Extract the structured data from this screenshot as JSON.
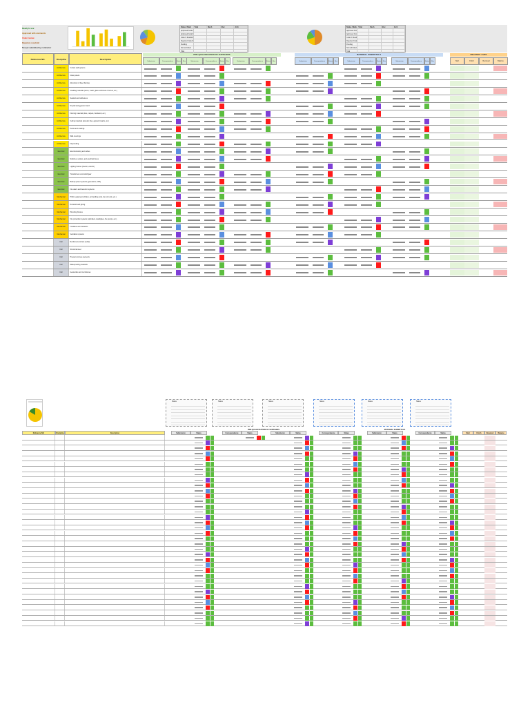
{
  "sheet1": {
    "legend_lines": [
      "Ready to use",
      "Approved with comments",
      "Under review",
      "Rejected, resubmit",
      "Not yet submitted by contractor"
    ],
    "legend_colors": [
      "#1a7a1a",
      "#a8680d",
      "#ff2200",
      "#a05010",
      "#333333"
    ],
    "summary_left": {
      "headers": [
        "Status / Mark",
        "Total",
        "Mech",
        "Elec",
        "Arch"
      ],
      "rows": [
        [
          "Approved Code A",
          "",
          "",
          "",
          ""
        ],
        [
          "Approved Code B",
          "",
          "",
          "",
          ""
        ],
        [
          "Code C Resubmit",
          "",
          "",
          "",
          ""
        ],
        [
          "Rejected Code D",
          "",
          "",
          "",
          ""
        ],
        [
          "Pending",
          "",
          "",
          "",
          ""
        ],
        [
          "Not submitted",
          "",
          "",
          "",
          ""
        ],
        [
          "Total",
          "",
          "",
          "",
          ""
        ]
      ]
    },
    "summary_right": {
      "headers": [
        "Status / Mark",
        "Total",
        "Mech",
        "Elec",
        "Arch"
      ],
      "rows": [
        [
          "Approved Code A",
          "",
          "",
          "",
          ""
        ],
        [
          "Approved Code B",
          "",
          "",
          "",
          ""
        ],
        [
          "Code C Resubmit",
          "",
          "",
          "",
          ""
        ],
        [
          "Rejected Code D",
          "",
          "",
          "",
          ""
        ],
        [
          "Pending",
          "",
          "",
          "",
          ""
        ],
        [
          "Not submitted",
          "",
          "",
          "",
          ""
        ],
        [
          "Total",
          "",
          "",
          "",
          ""
        ]
      ]
    },
    "band_prequal": "PRE-QUALIFICATION OF SUPPLIERS",
    "band_material": "MATERIAL SUBMITTALS",
    "band_right": "DELIVERY / SITE",
    "col_reference": "Reference NO.",
    "col_discipline": "Discipline",
    "col_description": "Description",
    "sub_headers": [
      "Submission",
      "Correspondence",
      "Status",
      "Rev"
    ],
    "rows": [
      {
        "ref": "",
        "disc": "Architecture",
        "desc": "Curtain wall systems"
      },
      {
        "ref": "",
        "disc": "Architecture",
        "desc": "Glass panels"
      },
      {
        "ref": "",
        "disc": "Architecture",
        "desc": "Aluminium & Steel framing"
      },
      {
        "ref": "",
        "disc": "Architecture",
        "desc": "Cladding materials (stone, metal, glass reinforced concrete, etc.)"
      },
      {
        "ref": "",
        "disc": "Architecture",
        "desc": "Sealants and adhesives"
      },
      {
        "ref": "",
        "disc": "Architecture",
        "desc": "Drywall and gypsum board"
      },
      {
        "ref": "",
        "disc": "Architecture",
        "desc": "Flooring materials (tiles, carpets, hardwood, etc.)"
      },
      {
        "ref": "",
        "disc": "Architecture",
        "desc": "Ceiling materials (acoustic tiles, gypsum boards, etc.)"
      },
      {
        "ref": "",
        "disc": "Architecture",
        "desc": "Paints and coatings"
      },
      {
        "ref": "",
        "disc": "Architecture",
        "desc": "Wall coverings"
      },
      {
        "ref": "",
        "disc": "Architecture",
        "desc": "Fireproofing"
      },
      {
        "ref": "",
        "disc": "Electrical",
        "desc": "Electrical wiring and cables"
      },
      {
        "ref": "",
        "disc": "Electrical",
        "desc": "Switches, sockets, and electrical boxes"
      },
      {
        "ref": "",
        "disc": "Electrical",
        "desc": "Lighting fixtures (interior, exterior)"
      },
      {
        "ref": "",
        "disc": "Electrical",
        "desc": "Transformers and switchgear"
      },
      {
        "ref": "",
        "disc": "Electrical",
        "desc": "Backup power systems (generators, UPS)"
      },
      {
        "ref": "",
        "disc": "Electrical",
        "desc": "Fire alarm and detection systems"
      },
      {
        "ref": "",
        "disc": "Mechanical",
        "desc": "HVAC equipment (chillers, air handling units, fan coil units, etc.)"
      },
      {
        "ref": "",
        "disc": "Mechanical",
        "desc": "Ductwork and piping"
      },
      {
        "ref": "",
        "disc": "Mechanical",
        "desc": "Plumbing fixtures"
      },
      {
        "ref": "",
        "disc": "Mechanical",
        "desc": "Fire protection systems (sprinklers, standpipes, fire pumps, etc.)"
      },
      {
        "ref": "",
        "disc": "Mechanical",
        "desc": "Insulation and insulators"
      },
      {
        "ref": "",
        "disc": "Mechanical",
        "desc": "Ventilation systems"
      },
      {
        "ref": "",
        "disc": "Civil",
        "desc": "Reinforcement bars (rebar)"
      },
      {
        "ref": "",
        "disc": "Civil",
        "desc": "Structural steel"
      },
      {
        "ref": "",
        "disc": "Civil",
        "desc": "Precast concrete elements"
      },
      {
        "ref": "",
        "disc": "Civil",
        "desc": "Waterproofing materials"
      },
      {
        "ref": "",
        "disc": "Civil",
        "desc": "Geotextiles and membranes"
      }
    ],
    "disc_colors": {
      "Architecture": "#ffe600",
      "Electrical": "#8bc34a",
      "Mechanical": "#ffd000",
      "Civil": "#d0d4dc"
    },
    "status_colors": {
      "green": "#5cbd3f",
      "purple": "#7e3ed6",
      "red": "#ff1a1a",
      "blue": "#5a8fe0",
      "pink": "#f7b6b6",
      "lightgreen": "#e4f4d9"
    }
  },
  "sheet2": {
    "pie_title": "",
    "panel_titles": [
      "Status",
      "Status",
      "Status",
      "Status",
      "Status",
      "Status"
    ],
    "band_prequal": "PRE-QUALIFICATION OF SUPPLIERS",
    "band_material": "MATERIAL SUBMITTALS",
    "col_reference": "Reference NO.",
    "col_discipline": "Discipline",
    "col_description": "Description",
    "sub_headers": [
      "Submission",
      "Correspondence",
      "Submission",
      "Correspondence",
      "Submission",
      "Correspondence"
    ],
    "right_headers": [
      "Start",
      "Finish",
      "Received",
      "Balance"
    ],
    "row_count": 36
  }
}
